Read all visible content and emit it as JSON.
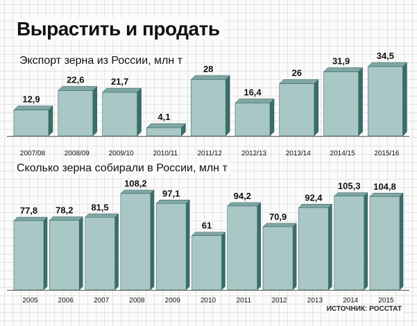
{
  "title": "Вырастить и продать",
  "source": "ИСТОЧНИК: РОССТАТ",
  "colors": {
    "bar_face": "#a9c7c5",
    "bar_top": "#7fa7a4",
    "bar_side": "#3a6e6a",
    "bar_edge": "#2d5a57",
    "axis": "#555555"
  },
  "chart_data": [
    {
      "type": "bar",
      "title": "Экспорт зерна из России, млн т",
      "categories": [
        "2007/08",
        "2008/09",
        "2009/10",
        "2010/11",
        "2011/12",
        "2012/13",
        "2013/14",
        "2014/15",
        "2015/16"
      ],
      "values": [
        12.9,
        22.6,
        21.7,
        4.1,
        28,
        16.4,
        26,
        31.9,
        34.5
      ],
      "value_labels": [
        "12,9",
        "22,6",
        "21,7",
        "4,1",
        "28",
        "16,4",
        "26",
        "31,9",
        "34,5"
      ],
      "ylim": [
        0,
        34.5
      ],
      "grid": true
    },
    {
      "type": "bar",
      "title": "Сколько зерна собирали в России, млн т",
      "categories": [
        "2005",
        "2006",
        "2007",
        "2008",
        "2009",
        "2010",
        "2011",
        "2012",
        "2013",
        "2014",
        "2015"
      ],
      "values": [
        77.8,
        78.2,
        81.5,
        108.2,
        97.1,
        61,
        94.2,
        70.9,
        92.4,
        105.3,
        104.8
      ],
      "value_labels": [
        "77,8",
        "78,2",
        "81,5",
        "108,2",
        "97,1",
        "61",
        "94,2",
        "70,9",
        "92,4",
        "105,3",
        "104,8"
      ],
      "ylim": [
        0,
        108.2
      ],
      "grid": true
    }
  ]
}
